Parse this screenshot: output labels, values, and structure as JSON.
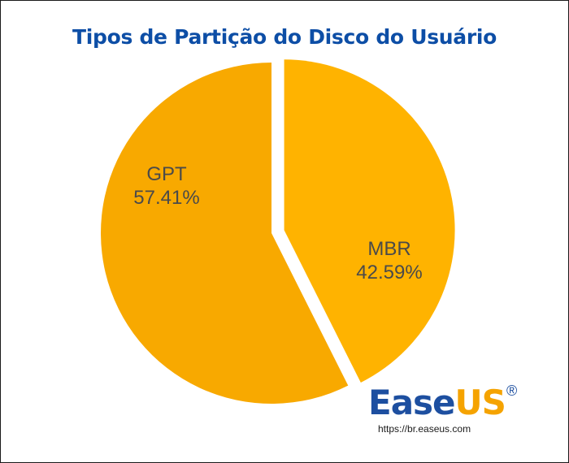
{
  "chart_data": {
    "type": "pie",
    "title": "Tipos de Partição do Disco do Usuário",
    "slices": [
      {
        "name": "GPT",
        "label": "57.41%",
        "value": 57.41,
        "color": "#f8a900"
      },
      {
        "name": "MBR",
        "label": "42.59%",
        "value": 42.59,
        "color": "#ffb300",
        "exploded": true
      }
    ]
  },
  "brand": {
    "name_part1": "Ease",
    "name_part2": "US",
    "registered": "®",
    "url": "https://br.easeus.com"
  }
}
